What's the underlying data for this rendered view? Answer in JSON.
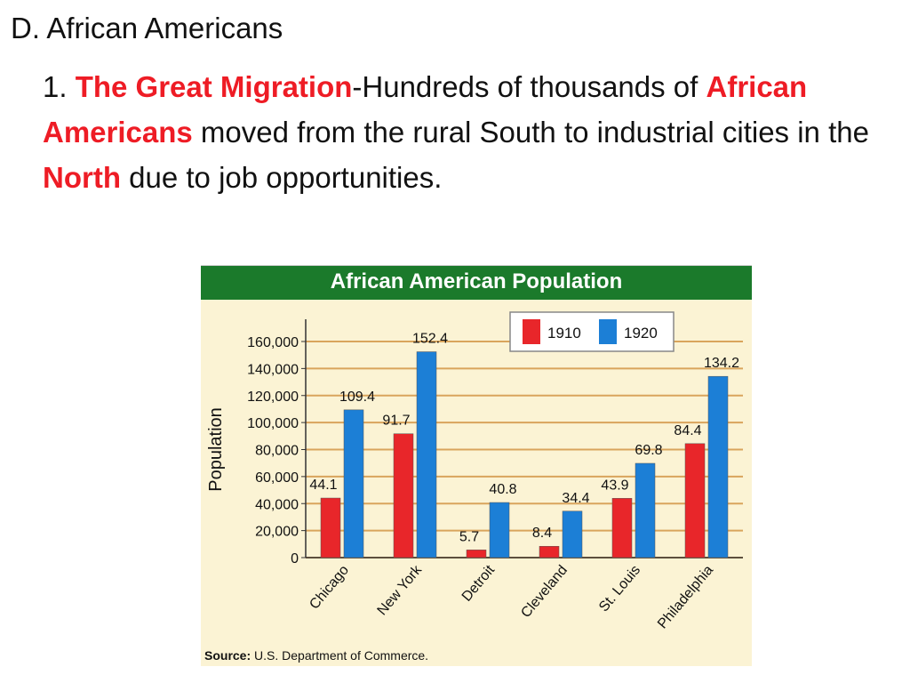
{
  "slide": {
    "heading": "D. African Americans",
    "bullet_number": "1.",
    "term": "The Great Migration",
    "text_1": "-Hundreds of thousands of",
    "highlight_2": "African Americans",
    "text_2": " moved from the rural South to industrial cities in the ",
    "highlight_3": "North",
    "text_3": " due to job opportunities."
  },
  "chart_data": {
    "type": "bar",
    "title": "African American Population",
    "xlabel": "",
    "ylabel": "Population",
    "ylim": [
      0,
      160000
    ],
    "yticks": [
      "0",
      "20,000",
      "40,000",
      "60,000",
      "80,000",
      "100,000",
      "120,000",
      "140,000",
      "160,000"
    ],
    "categories": [
      "Chicago",
      "New York",
      "Detroit",
      "Cleveland",
      "St. Louis",
      "Philadelphia"
    ],
    "series": [
      {
        "name": "1910",
        "color": "#e8262a",
        "values": [
          44100,
          91700,
          5700,
          8400,
          43900,
          84400
        ],
        "labels": [
          "44.1",
          "91.7",
          "5.7",
          "8.4",
          "43.9",
          "84.4"
        ]
      },
      {
        "name": "1920",
        "color": "#1c7fd6",
        "values": [
          109400,
          152400,
          40800,
          34400,
          69800,
          134200
        ],
        "labels": [
          "109.4",
          "152.4",
          "40.8",
          "34.4",
          "69.8",
          "134.2"
        ]
      }
    ],
    "legend_position": "top-right",
    "grid": true,
    "source_label": "Source:",
    "source_text": " U.S. Department of Commerce."
  }
}
